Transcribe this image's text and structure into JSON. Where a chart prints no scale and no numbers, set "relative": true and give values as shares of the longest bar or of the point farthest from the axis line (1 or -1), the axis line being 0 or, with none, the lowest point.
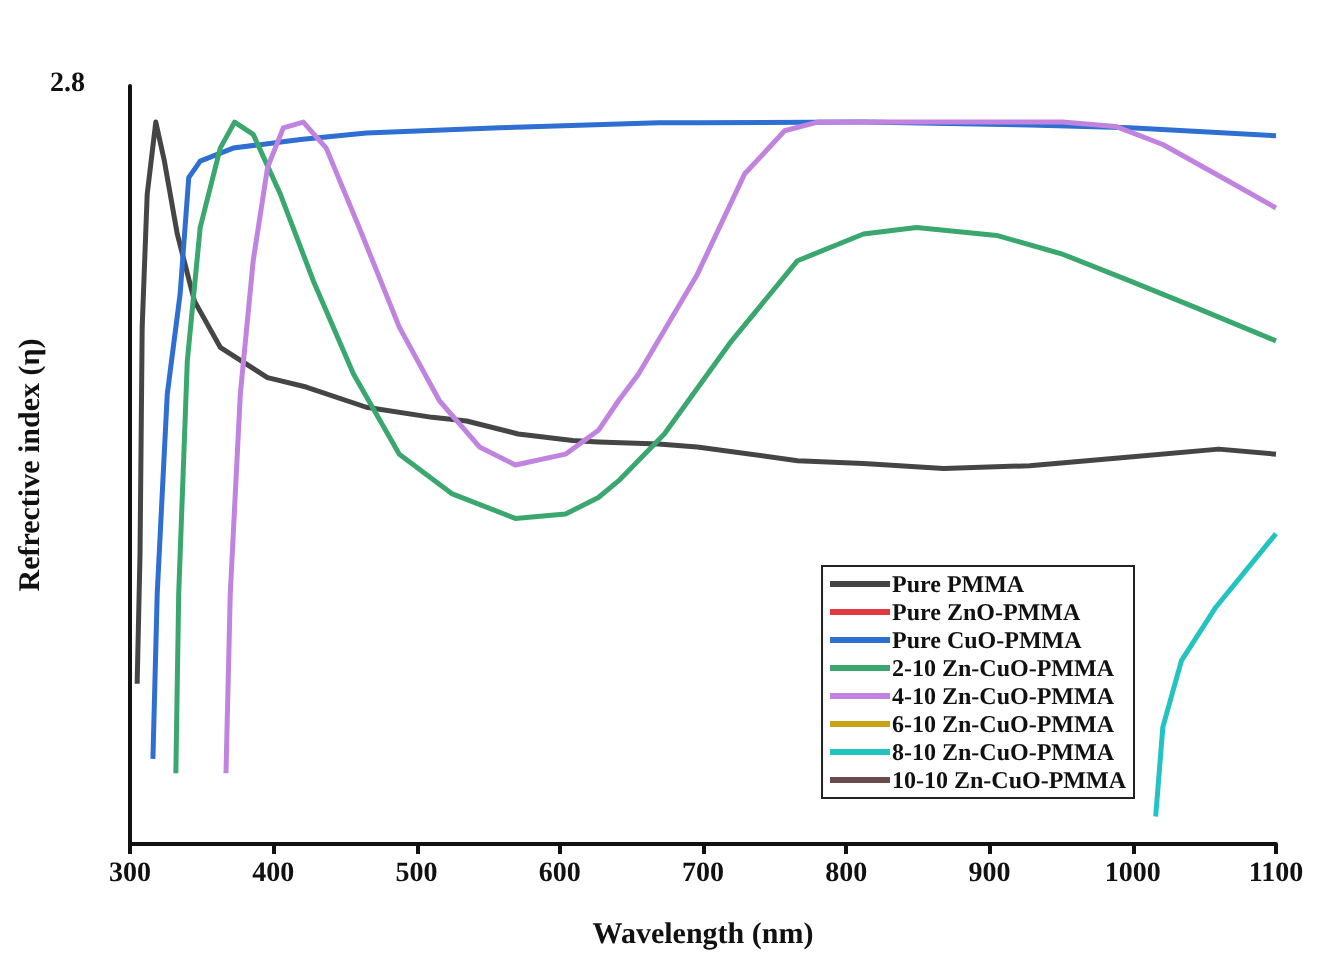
{
  "chart_data": {
    "type": "line",
    "relative": true,
    "xlabel": "Wavelength (nm)",
    "ylabel": "Refrective index (η)",
    "xlim": [
      300,
      1100
    ],
    "xticks": [
      300,
      400,
      500,
      600,
      700,
      800,
      900,
      1000,
      1100
    ],
    "grid": false,
    "legend": "bottom right",
    "marker": "none",
    "line_style": "solid",
    "annotations": [
      "2.8"
    ],
    "series": [
      {
        "name": "Pure PMMA",
        "color": "#454545",
        "x": [
          305,
          307,
          308.5,
          312,
          318,
          324,
          333,
          345,
          363,
          396,
          423,
          465,
          511,
          535,
          571,
          609,
          627,
          669,
          696,
          766,
          812,
          868,
          928,
          998,
          1060,
          1100
        ],
        "values": [
          0.222,
          0.402,
          0.716,
          0.9,
          1.0,
          0.946,
          0.845,
          0.752,
          0.688,
          0.646,
          0.633,
          0.605,
          0.591,
          0.586,
          0.568,
          0.559,
          0.557,
          0.554,
          0.55,
          0.531,
          0.527,
          0.52,
          0.524,
          0.536,
          0.547,
          0.54
        ]
      },
      {
        "name": "Pure ZnO-PMMA",
        "color": "#e0393e"
      },
      {
        "name": "Pure CuO-PMMA",
        "color": "#2e6fd1",
        "x": [
          316,
          319,
          326,
          335,
          341,
          349,
          372,
          419,
          465,
          558,
          669,
          696,
          812,
          928,
          998,
          1100
        ],
        "values": [
          0.118,
          0.347,
          0.623,
          0.762,
          0.923,
          0.946,
          0.964,
          0.976,
          0.985,
          0.992,
          0.999,
          0.999,
          1.0,
          0.996,
          0.992,
          0.981
        ]
      },
      {
        "name": "2-10 Zn-CuO-PMMA",
        "color": "#3aa86e",
        "x": [
          332,
          334,
          340,
          349,
          363,
          373,
          386,
          405,
          428,
          456,
          488,
          525,
          569,
          604,
          627,
          641,
          673,
          720,
          766,
          812,
          849,
          905,
          951,
          998,
          1044,
          1100
        ],
        "values": [
          0.098,
          0.347,
          0.669,
          0.854,
          0.964,
          1.0,
          0.983,
          0.9,
          0.78,
          0.651,
          0.54,
          0.485,
          0.451,
          0.457,
          0.48,
          0.503,
          0.568,
          0.697,
          0.808,
          0.845,
          0.854,
          0.843,
          0.817,
          0.78,
          0.743,
          0.697
        ]
      },
      {
        "name": "4-10 Zn-CuO-PMMA",
        "color": "#c084e0",
        "x": [
          367,
          370,
          377,
          386,
          396,
          407,
          421,
          437,
          460,
          488,
          516,
          544,
          569,
          604,
          627,
          641,
          655,
          696,
          729,
          757,
          780,
          859,
          951,
          988,
          1021,
          1067,
          1100
        ],
        "values": [
          0.098,
          0.347,
          0.623,
          0.808,
          0.937,
          0.992,
          1.0,
          0.964,
          0.854,
          0.716,
          0.614,
          0.55,
          0.525,
          0.54,
          0.573,
          0.614,
          0.651,
          0.789,
          0.928,
          0.988,
          1.0,
          1.0,
          1.0,
          0.994,
          0.969,
          0.918,
          0.881
        ]
      },
      {
        "name": "6-10 Zn-CuO-PMMA",
        "color": "#c9a216"
      },
      {
        "name": "8-10 Zn-CuO-PMMA",
        "color": "#22c3c0",
        "x": [
          1016,
          1021,
          1034,
          1058,
          1100
        ],
        "values": [
          0.038,
          0.162,
          0.254,
          0.328,
          0.43
        ]
      },
      {
        "name": "10-10 Zn-CuO-PMMA",
        "color": "#6a4a4a"
      }
    ]
  }
}
